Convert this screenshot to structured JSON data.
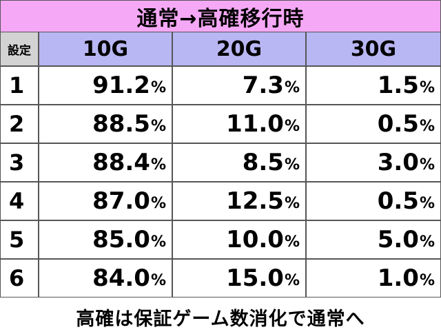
{
  "title": "通常→高確移行時",
  "header": {
    "setting": "設定",
    "columns": [
      "10G",
      "20G",
      "30G"
    ]
  },
  "rows": [
    {
      "setting": "1",
      "values": [
        "91.2",
        "7.3",
        "1.5"
      ]
    },
    {
      "setting": "2",
      "values": [
        "88.5",
        "11.0",
        "0.5"
      ]
    },
    {
      "setting": "3",
      "values": [
        "88.4",
        "8.5",
        "3.0"
      ]
    },
    {
      "setting": "4",
      "values": [
        "87.0",
        "12.5",
        "0.5"
      ]
    },
    {
      "setting": "5",
      "values": [
        "85.0",
        "10.0",
        "5.0"
      ]
    },
    {
      "setting": "6",
      "values": [
        "84.0",
        "15.0",
        "1.0"
      ]
    }
  ],
  "percent_sign": "%",
  "footer": "高確は保証ゲーム数消化で通常へ",
  "colors": {
    "title_bg": "#f5a8f5",
    "header_bg": "#b9b6f4",
    "setting_header_bg": "#d3d3d3"
  }
}
